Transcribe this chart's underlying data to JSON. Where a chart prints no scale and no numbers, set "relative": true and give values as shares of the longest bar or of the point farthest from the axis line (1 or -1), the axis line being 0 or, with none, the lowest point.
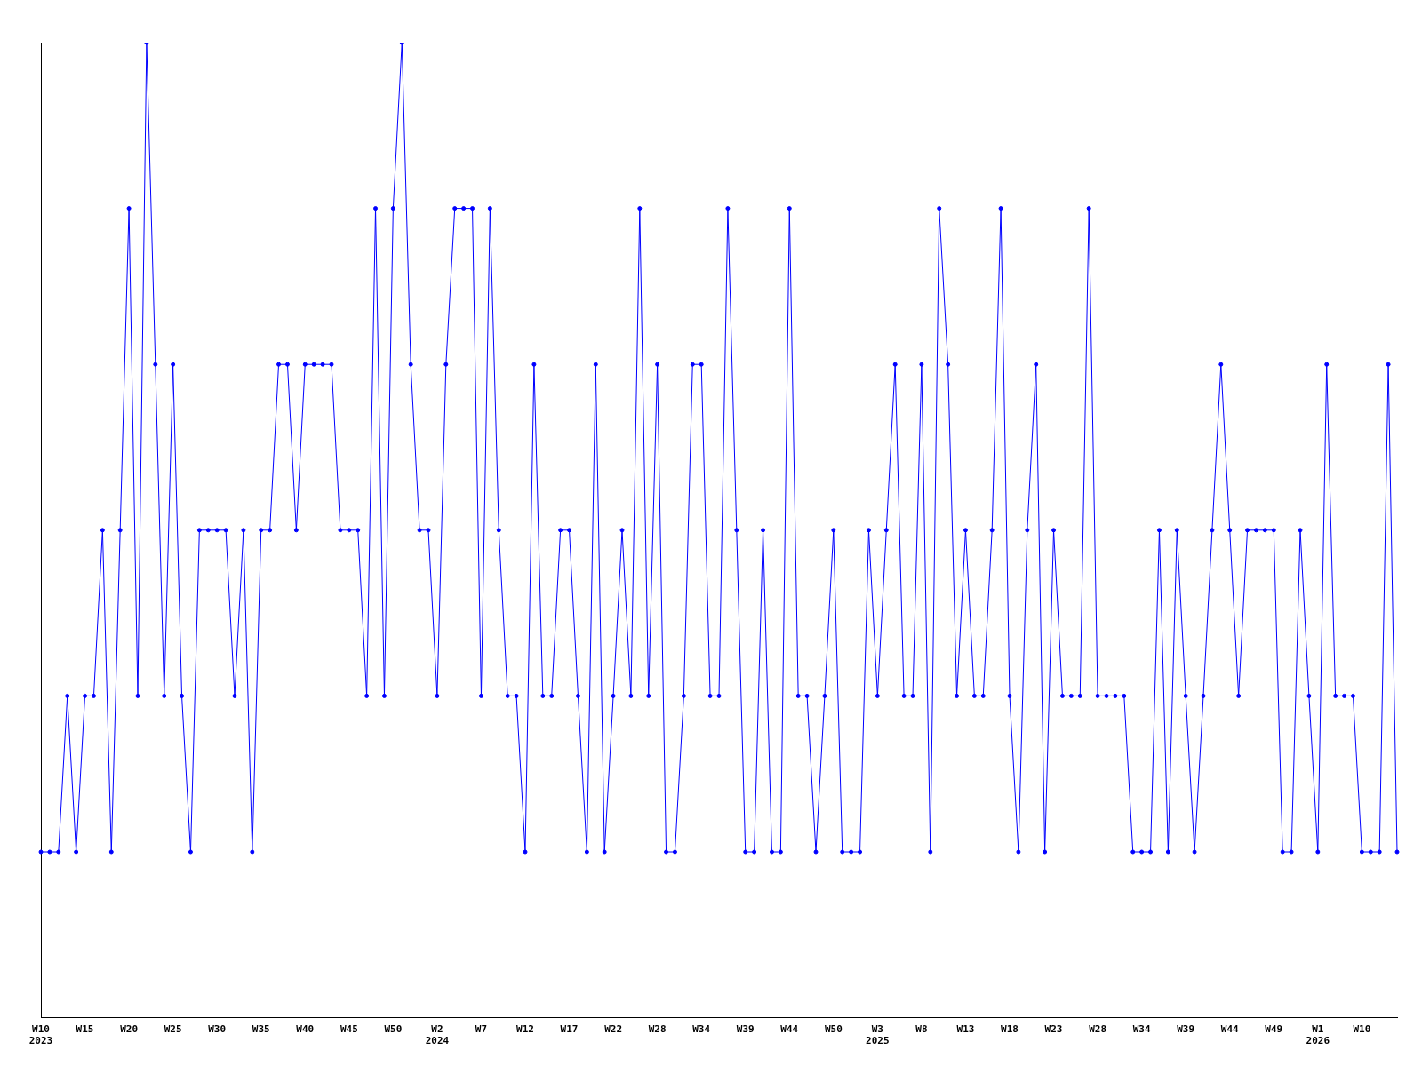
{
  "chart_data": {
    "type": "line",
    "relative": true,
    "marker": "circle",
    "categories": [
      "W10 2023",
      null,
      null,
      null,
      null,
      "W15",
      null,
      null,
      null,
      null,
      "W20",
      null,
      null,
      null,
      null,
      "W25",
      null,
      null,
      null,
      null,
      "W30",
      null,
      null,
      null,
      null,
      "W35",
      null,
      null,
      null,
      null,
      "W40",
      null,
      null,
      null,
      null,
      "W45",
      null,
      null,
      null,
      null,
      "W50",
      null,
      null,
      null,
      null,
      "W2 2024",
      null,
      null,
      null,
      null,
      "W7",
      null,
      null,
      null,
      null,
      "W12",
      null,
      null,
      null,
      null,
      "W17",
      null,
      null,
      null,
      null,
      "W22",
      null,
      null,
      null,
      null,
      "W28",
      null,
      null,
      null,
      null,
      "W34",
      null,
      null,
      null,
      null,
      "W39",
      null,
      null,
      null,
      null,
      "W44",
      null,
      null,
      null,
      null,
      "W50",
      null,
      null,
      null,
      null,
      "W3 2025",
      null,
      null,
      null,
      null,
      "W8",
      null,
      null,
      null,
      null,
      "W13",
      null,
      null,
      null,
      null,
      "W18",
      null,
      null,
      null,
      null,
      "W23",
      null,
      null,
      null,
      null,
      "W28",
      null,
      null,
      null,
      null,
      "W34",
      null,
      null,
      null,
      null,
      "W39",
      null,
      null,
      null,
      null,
      "W44",
      null,
      null,
      null,
      null,
      "W49",
      null,
      null,
      null,
      null,
      "W1 2026",
      null,
      null,
      null,
      null,
      "W10",
      null,
      null,
      null,
      null
    ],
    "series": [
      {
        "color": "#0000ff",
        "values": [
          0.17,
          0.17,
          0.17,
          0.33,
          0.17,
          0.33,
          0.33,
          0.5,
          0.17,
          0.5,
          0.83,
          0.33,
          1,
          0.67,
          0.33,
          0.67,
          0.33,
          0.17,
          0.5,
          0.5,
          0.5,
          0.5,
          0.33,
          0.5,
          0.17,
          0.5,
          0.5,
          0.67,
          0.67,
          0.5,
          0.67,
          0.67,
          0.67,
          0.67,
          0.5,
          0.5,
          0.5,
          0.33,
          0.83,
          0.33,
          0.83,
          1,
          0.67,
          0.5,
          0.5,
          0.33,
          0.67,
          0.83,
          0.83,
          0.83,
          0.33,
          0.83,
          0.5,
          0.33,
          0.33,
          0.17,
          0.67,
          0.33,
          0.33,
          0.5,
          0.5,
          0.33,
          0.17,
          0.67,
          0.17,
          0.33,
          0.5,
          0.33,
          0.83,
          0.33,
          0.67,
          0.17,
          0.17,
          0.33,
          0.67,
          0.67,
          0.33,
          0.33,
          0.83,
          0.5,
          0.17,
          0.17,
          0.5,
          0.17,
          0.17,
          0.83,
          0.33,
          0.33,
          0.17,
          0.33,
          0.5,
          0.17,
          0.17,
          0.17,
          0.5,
          0.33,
          0.5,
          0.67,
          0.33,
          0.33,
          0.67,
          0.17,
          0.83,
          0.67,
          0.33,
          0.5,
          0.33,
          0.33,
          0.5,
          0.83,
          0.33,
          0.17,
          0.5,
          0.67,
          0.17,
          0.5,
          0.33,
          0.33,
          0.33,
          0.83,
          0.33,
          0.33,
          0.33,
          0.33,
          0.17,
          0.17,
          0.17,
          0.5,
          0.17,
          0.5,
          0.33,
          0.17,
          0.33,
          0.5,
          0.67,
          0.5,
          0.33,
          0.5,
          0.5,
          0.5,
          0.5,
          0.17,
          0.17,
          0.5,
          0.33,
          0.17,
          0.67,
          0.33,
          0.33,
          0.33,
          0.17,
          0.17,
          0.17,
          0.67,
          0.17
        ]
      }
    ]
  }
}
